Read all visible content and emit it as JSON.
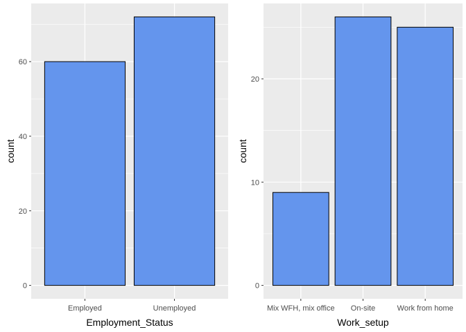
{
  "colors": {
    "panel_background": "#ebebeb",
    "grid_major": "#ffffff",
    "bar_fill": "#6495ed",
    "bar_outline": "#000000",
    "tick_text": "#4d4d4d",
    "axis_title_text": "#000000"
  },
  "chart_data": [
    {
      "type": "bar",
      "categories": [
        "Employed",
        "Unemployed"
      ],
      "values": [
        60,
        72
      ],
      "xlabel": "Employment_Status",
      "ylabel": "count",
      "yticks": [
        0,
        20,
        40,
        60
      ],
      "ylim": [
        -3.6,
        75.6
      ],
      "grid": true,
      "legend": "none"
    },
    {
      "type": "bar",
      "categories": [
        "Mix WFH, mix office",
        "On-site",
        "Work from home"
      ],
      "values": [
        9,
        26,
        25
      ],
      "xlabel": "Work_setup",
      "ylabel": "count",
      "yticks": [
        0,
        10,
        20
      ],
      "ylim": [
        -1.3,
        27.3
      ],
      "grid": true,
      "legend": "none"
    }
  ]
}
